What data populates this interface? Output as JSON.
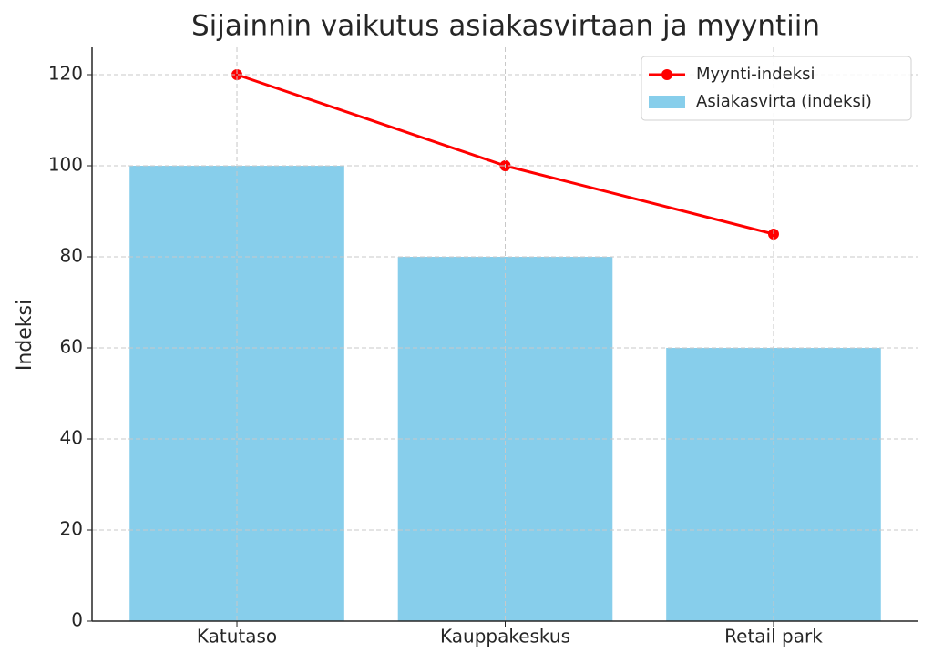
{
  "chart_data": {
    "type": "bar_line",
    "title": "Sijainnin vaikutus asiakasvirtaan ja myyntiin",
    "y_label": "Indeksi",
    "categories": [
      "Katutaso",
      "Kauppakeskus",
      "Retail park"
    ],
    "series": [
      {
        "name": "Asiakasvirta (indeksi)",
        "type": "bar",
        "color": "#87ceeb",
        "values": [
          100,
          80,
          60
        ]
      },
      {
        "name": "Myynti-indeksi",
        "type": "line",
        "color": "#ff0000",
        "values": [
          120,
          100,
          85
        ]
      }
    ],
    "ylim": [
      0,
      126
    ],
    "yticks": [
      0,
      20,
      40,
      60,
      80,
      100,
      120
    ],
    "grid": true,
    "legend": "upper right"
  }
}
